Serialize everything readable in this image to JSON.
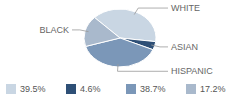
{
  "chart_data": {
    "type": "pie",
    "categories": [
      "WHITE",
      "ASIAN",
      "HISPANIC",
      "BLACK"
    ],
    "values": [
      39.5,
      4.6,
      38.7,
      17.2
    ],
    "value_labels": [
      "39.5%",
      "4.6%",
      "38.7%",
      "17.2%"
    ],
    "colors": [
      "#c9d6e3",
      "#2e4f76",
      "#7b97b8",
      "#a9b9cc"
    ],
    "legend": "bottom"
  }
}
